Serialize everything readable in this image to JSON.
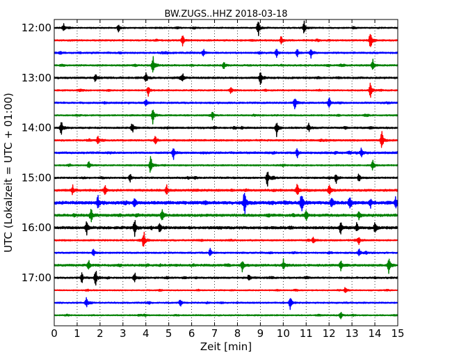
{
  "chart_data": {
    "type": "line",
    "subtype": "helicorder",
    "title": "BW.ZUGS..HHZ 2018-03-18",
    "xlabel": "Zeit  [min]",
    "ylabel": "UTC (Lokalzeit = UTC + 01:00)",
    "x_ticks": [
      "0",
      "1",
      "2",
      "3",
      "4",
      "5",
      "6",
      "7",
      "8",
      "9",
      "10",
      "11",
      "12",
      "13",
      "14",
      "15"
    ],
    "xlim": [
      0,
      15
    ],
    "y_ticks": [
      "12:00",
      "13:00",
      "14:00",
      "15:00",
      "16:00",
      "17:00"
    ],
    "grid": "vertical-dotted",
    "trace_colors": [
      "#000000",
      "#ff0000",
      "#0000ff",
      "#008000"
    ],
    "traces": [
      {
        "start": "12:00",
        "amplitude": 1.0,
        "events": [
          [
            8.9,
            3.0
          ],
          [
            10.9,
            2.5
          ],
          [
            2.8,
            1.5
          ],
          [
            0.4,
            1.3
          ]
        ]
      },
      {
        "start": "12:15",
        "amplitude": 1.1,
        "events": [
          [
            13.8,
            3.5
          ],
          [
            5.6,
            2.0
          ],
          [
            9.9,
            1.4
          ]
        ]
      },
      {
        "start": "12:30",
        "amplitude": 1.2,
        "events": [
          [
            9.7,
            1.6
          ],
          [
            11.2,
            1.6
          ],
          [
            6.5,
            1.3
          ],
          [
            10.6,
            1.3
          ]
        ]
      },
      {
        "start": "12:45",
        "amplitude": 1.1,
        "events": [
          [
            4.3,
            3.5
          ],
          [
            13.9,
            2.0
          ],
          [
            7.4,
            1.3
          ]
        ]
      },
      {
        "start": "13:00",
        "amplitude": 1.3,
        "events": [
          [
            9.0,
            3.0
          ],
          [
            4.0,
            1.6
          ],
          [
            1.8,
            1.5
          ],
          [
            5.6,
            1.4
          ]
        ]
      },
      {
        "start": "13:15",
        "amplitude": 1.0,
        "events": [
          [
            13.8,
            3.0
          ],
          [
            4.1,
            1.8
          ],
          [
            7.7,
            1.3
          ]
        ]
      },
      {
        "start": "13:30",
        "amplitude": 1.2,
        "events": [
          [
            10.5,
            2.5
          ],
          [
            4.0,
            1.4
          ],
          [
            12.0,
            1.4
          ]
        ]
      },
      {
        "start": "13:45",
        "amplitude": 1.0,
        "events": [
          [
            4.3,
            3.0
          ],
          [
            6.9,
            1.3
          ]
        ]
      },
      {
        "start": "14:00",
        "amplitude": 1.2,
        "events": [
          [
            9.7,
            3.0
          ],
          [
            0.3,
            2.5
          ],
          [
            3.4,
            2.0
          ],
          [
            11.1,
            1.5
          ]
        ]
      },
      {
        "start": "14:15",
        "amplitude": 1.2,
        "events": [
          [
            14.3,
            3.5
          ],
          [
            4.4,
            2.0
          ],
          [
            1.9,
            1.4
          ]
        ]
      },
      {
        "start": "14:30",
        "amplitude": 1.4,
        "events": [
          [
            5.2,
            2.0
          ],
          [
            10.6,
            1.6
          ],
          [
            13.4,
            1.4
          ]
        ]
      },
      {
        "start": "14:45",
        "amplitude": 1.0,
        "events": [
          [
            4.2,
            3.5
          ],
          [
            13.9,
            2.0
          ],
          [
            1.5,
            1.3
          ]
        ]
      },
      {
        "start": "15:00",
        "amplitude": 1.2,
        "events": [
          [
            9.3,
            3.0
          ],
          [
            12.3,
            1.8
          ],
          [
            13.3,
            1.6
          ],
          [
            3.3,
            1.5
          ]
        ]
      },
      {
        "start": "15:15",
        "amplitude": 1.5,
        "events": [
          [
            10.6,
            2.5
          ],
          [
            12.0,
            2.0
          ],
          [
            4.9,
            2.0
          ],
          [
            2.2,
            1.8
          ],
          [
            0.8,
            1.6
          ]
        ]
      },
      {
        "start": "15:30",
        "amplitude": 2.2,
        "events": [
          [
            8.3,
            4.5
          ],
          [
            10.8,
            4.5
          ],
          [
            12.9,
            3.0
          ],
          [
            1.9,
            2.5
          ],
          [
            12.1,
            2.2
          ],
          [
            13.8,
            1.8
          ],
          [
            3.5,
            1.7
          ],
          [
            14.9,
            1.6
          ]
        ]
      },
      {
        "start": "15:45",
        "amplitude": 1.8,
        "events": [
          [
            1.6,
            2.5
          ],
          [
            4.7,
            2.0
          ],
          [
            11.0,
            1.8
          ],
          [
            13.3,
            1.5
          ]
        ]
      },
      {
        "start": "16:00",
        "amplitude": 1.8,
        "events": [
          [
            3.5,
            3.0
          ],
          [
            1.4,
            2.2
          ],
          [
            12.5,
            2.2
          ],
          [
            14.0,
            1.8
          ],
          [
            4.6,
            1.8
          ],
          [
            13.2,
            1.5
          ]
        ]
      },
      {
        "start": "16:15",
        "amplitude": 1.1,
        "events": [
          [
            3.9,
            3.5
          ],
          [
            13.3,
            1.5
          ],
          [
            11.3,
            1.3
          ]
        ]
      },
      {
        "start": "16:30",
        "amplitude": 1.1,
        "events": [
          [
            1.7,
            1.4
          ],
          [
            6.8,
            1.4
          ],
          [
            13.3,
            1.4
          ]
        ]
      },
      {
        "start": "16:45",
        "amplitude": 1.5,
        "events": [
          [
            14.6,
            3.5
          ],
          [
            8.2,
            2.2
          ],
          [
            10.0,
            2.0
          ],
          [
            12.5,
            1.8
          ],
          [
            1.5,
            1.6
          ]
        ]
      },
      {
        "start": "17:00",
        "amplitude": 1.2,
        "events": [
          [
            1.8,
            3.0
          ],
          [
            3.5,
            2.0
          ],
          [
            1.2,
            1.8
          ],
          [
            8.5,
            1.3
          ]
        ]
      },
      {
        "start": "17:15",
        "amplitude": 0.8,
        "events": [
          [
            12.7,
            1.3
          ]
        ]
      },
      {
        "start": "17:30",
        "amplitude": 1.0,
        "events": [
          [
            10.3,
            2.5
          ],
          [
            1.4,
            1.5
          ],
          [
            5.5,
            1.3
          ]
        ]
      },
      {
        "start": "17:45",
        "amplitude": 0.9,
        "events": [
          [
            12.5,
            1.3
          ]
        ]
      }
    ]
  }
}
